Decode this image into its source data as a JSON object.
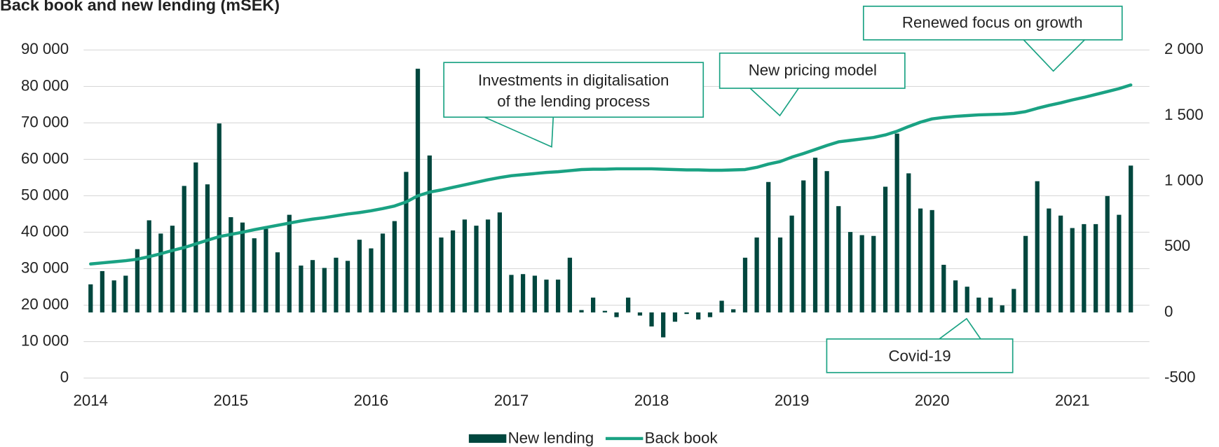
{
  "chart_data": {
    "type": "bar_line",
    "title": "Back book and new lending (mSEK)",
    "x": [
      2014,
      2014.083,
      2014.167,
      2014.25,
      2014.333,
      2014.417,
      2014.5,
      2014.583,
      2014.667,
      2014.75,
      2014.833,
      2014.917,
      2015,
      2015.083,
      2015.167,
      2015.25,
      2015.333,
      2015.417,
      2015.5,
      2015.583,
      2015.667,
      2015.75,
      2015.833,
      2015.917,
      2016,
      2016.083,
      2016.167,
      2016.25,
      2016.333,
      2016.417,
      2016.5,
      2016.583,
      2016.667,
      2016.75,
      2016.833,
      2016.917,
      2017,
      2017.083,
      2017.167,
      2017.25,
      2017.333,
      2017.417,
      2017.5,
      2017.583,
      2017.667,
      2017.75,
      2017.833,
      2017.917,
      2018,
      2018.083,
      2018.167,
      2018.25,
      2018.333,
      2018.417,
      2018.5,
      2018.583,
      2018.667,
      2018.75,
      2018.833,
      2018.917,
      2019,
      2019.083,
      2019.167,
      2019.25,
      2019.333,
      2019.417,
      2019.5,
      2019.583,
      2019.667,
      2019.75,
      2019.833,
      2019.917,
      2020,
      2020.083,
      2020.167,
      2020.25,
      2020.333,
      2020.417,
      2020.5,
      2020.583,
      2020.667,
      2020.75,
      2020.833,
      2020.917,
      2021,
      2021.083,
      2021.167,
      2021.25,
      2021.333,
      2021.417
    ],
    "series": [
      {
        "name": "New lending",
        "color": "#00473e",
        "axis": "y2",
        "kind": "bar",
        "values": [
          214,
          315,
          244,
          280,
          482,
          702,
          601,
          661,
          964,
          1143,
          976,
          1440,
          726,
          685,
          565,
          637,
          458,
          744,
          357,
          399,
          339,
          417,
          393,
          554,
          488,
          601,
          696,
          1071,
          1857,
          1196,
          571,
          625,
          708,
          661,
          708,
          762,
          286,
          292,
          280,
          250,
          250,
          417,
          18,
          113,
          12,
          -36,
          113,
          -24,
          -107,
          -190,
          -71,
          -12,
          -54,
          -36,
          89,
          24,
          417,
          571,
          994,
          571,
          738,
          1006,
          1179,
          1077,
          810,
          613,
          589,
          583,
          958,
          1363,
          1060,
          792,
          780,
          363,
          244,
          196,
          113,
          113,
          54,
          179,
          583,
          1000,
          792,
          738,
          643,
          673,
          673,
          887,
          744,
          1119
        ]
      },
      {
        "name": "Back book",
        "color": "#1aa283",
        "kind": "line",
        "values": [
          31300,
          31600,
          31900,
          32200,
          32600,
          33300,
          34100,
          35000,
          35800,
          36800,
          37800,
          38800,
          39400,
          40000,
          40700,
          41300,
          41900,
          42500,
          43100,
          43600,
          44000,
          44500,
          45000,
          45400,
          45900,
          46500,
          47200,
          48300,
          50000,
          51000,
          51600,
          52300,
          53000,
          53700,
          54400,
          55000,
          55500,
          55800,
          56100,
          56400,
          56600,
          56900,
          57200,
          57300,
          57300,
          57400,
          57400,
          57400,
          57400,
          57300,
          57200,
          57100,
          57100,
          57000,
          57000,
          57100,
          57200,
          57800,
          58700,
          59400,
          60600,
          61600,
          62700,
          63800,
          64800,
          65200,
          65600,
          66000,
          66700,
          67700,
          69000,
          70200,
          71100,
          71500,
          71800,
          72000,
          72200,
          72300,
          72400,
          72600,
          73100,
          74000,
          74800,
          75500,
          76300,
          77000,
          77800,
          78600,
          79400,
          80400
        ]
      }
    ],
    "xlim": [
      2013.95,
      2021.55
    ],
    "xticks": [
      2014,
      2015,
      2016,
      2017,
      2018,
      2019,
      2020,
      2021
    ],
    "ylim": [
      0,
      90000
    ],
    "yticks": [
      0,
      {
        "value": 10000,
        "label": "10 000"
      },
      {
        "value": 20000,
        "label": "20 000"
      },
      {
        "value": 30000,
        "label": "30 000"
      },
      {
        "value": 40000,
        "label": "40 000"
      },
      {
        "value": 50000,
        "label": "50 000"
      },
      {
        "value": 60000,
        "label": "60 000"
      },
      {
        "value": 70000,
        "label": "70 000"
      },
      {
        "value": 80000,
        "label": "80 000"
      },
      {
        "value": 90000,
        "label": "90 000"
      }
    ],
    "y2lim": [
      -500,
      2000
    ],
    "y2ticks": [
      -500,
      0,
      500,
      {
        "value": 1000,
        "label": "1 000"
      },
      {
        "value": 1500,
        "label": "1 500"
      },
      {
        "value": 2000,
        "label": "2 000"
      }
    ],
    "grid": true,
    "legend": "bottom",
    "annotations": [
      {
        "lines": [
          "Investments in digitalisation",
          "of the lending process"
        ]
      },
      {
        "lines": [
          "New pricing model"
        ]
      },
      {
        "lines": [
          "Renewed focus on growth"
        ]
      },
      {
        "lines": [
          "Covid-19"
        ]
      }
    ]
  }
}
